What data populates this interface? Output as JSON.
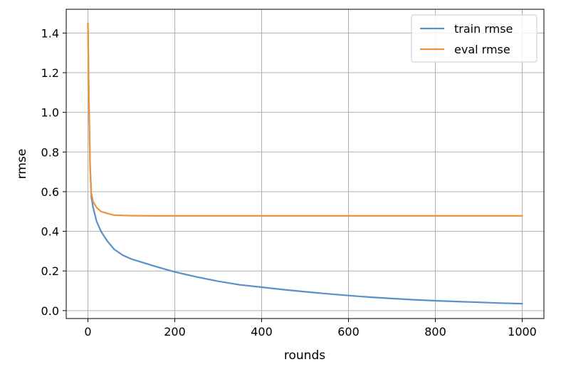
{
  "chart_data": {
    "type": "line",
    "title": "",
    "xlabel": "rounds",
    "ylabel": "rmse",
    "xlim": [
      -50,
      1050
    ],
    "ylim": [
      -0.04,
      1.52
    ],
    "xticks": [
      0,
      200,
      400,
      600,
      800,
      1000
    ],
    "yticks": [
      0.0,
      0.2,
      0.4,
      0.6,
      0.8,
      1.0,
      1.2,
      1.4
    ],
    "xtick_labels": [
      "0",
      "200",
      "400",
      "600",
      "800",
      "1000"
    ],
    "ytick_labels": [
      "0.0",
      "0.2",
      "0.4",
      "0.6",
      "0.8",
      "1.0",
      "1.2",
      "1.4"
    ],
    "grid": true,
    "legend": "top-right",
    "series": [
      {
        "name": "train rmse",
        "color": "#5b8fc9",
        "x": [
          0,
          2,
          5,
          8,
          12,
          20,
          30,
          45,
          60,
          80,
          100,
          130,
          160,
          200,
          250,
          300,
          350,
          400,
          450,
          500,
          550,
          600,
          650,
          700,
          750,
          800,
          850,
          900,
          950,
          1000
        ],
        "y": [
          1.45,
          1.1,
          0.72,
          0.57,
          0.52,
          0.45,
          0.4,
          0.35,
          0.31,
          0.28,
          0.26,
          0.24,
          0.22,
          0.195,
          0.17,
          0.148,
          0.13,
          0.118,
          0.106,
          0.095,
          0.085,
          0.076,
          0.068,
          0.061,
          0.055,
          0.05,
          0.046,
          0.042,
          0.038,
          0.035
        ]
      },
      {
        "name": "eval rmse",
        "color": "#f0943a",
        "x": [
          0,
          2,
          5,
          8,
          12,
          20,
          30,
          45,
          60,
          80,
          100,
          150,
          200,
          300,
          400,
          500,
          600,
          700,
          800,
          900,
          1000
        ],
        "y": [
          1.45,
          1.1,
          0.72,
          0.59,
          0.55,
          0.52,
          0.5,
          0.49,
          0.482,
          0.48,
          0.479,
          0.478,
          0.478,
          0.478,
          0.478,
          0.478,
          0.478,
          0.478,
          0.478,
          0.478,
          0.478
        ]
      }
    ]
  }
}
